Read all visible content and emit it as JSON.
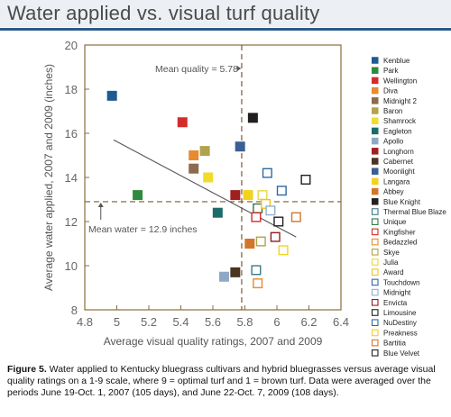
{
  "header": {
    "title": "Water applied vs. visual turf quality"
  },
  "caption": {
    "label": "Figure 5.",
    "text": " Water applied to Kentucky bluegrass cultivars and hybrid bluegrasses versus average visual quality ratings on a 1-9 scale, where 9 = optimal turf and 1 = brown turf. Data were averaged over the periods June 19-Oct. 1, 2007 (105 days), and June 22-Oct. 7, 2009 (108 days)."
  },
  "chart_data": {
    "type": "scatter",
    "xlabel": "Average visual quality ratings, 2007 and 2009",
    "ylabel": "Average water applied, 2007 and 2009 (inches)",
    "xlim": [
      4.8,
      6.4
    ],
    "ylim": [
      8,
      20
    ],
    "xticks": [
      "4.8",
      "5",
      "5.2",
      "5.4",
      "5.6",
      "5.8",
      "6",
      "6.2",
      "6.4"
    ],
    "yticks": [
      "8",
      "10",
      "12",
      "14",
      "16",
      "18",
      "20"
    ],
    "grid": false,
    "legend_position": "right",
    "mean_quality": {
      "value": 5.78,
      "label": "Mean quality = 5.78"
    },
    "mean_water": {
      "value": 12.9,
      "label": "Mean water = 12.9 inches"
    },
    "trendline": {
      "x": [
        4.98,
        6.12
      ],
      "y": [
        15.7,
        11.3
      ]
    },
    "colors": {
      "frame": "#8a6d3b",
      "mean_line": "#7a5a36",
      "trend": "#555555"
    },
    "series": [
      {
        "name": "Kenblue",
        "color": "#1f5a91",
        "filled": true,
        "x": 4.97,
        "y": 17.7
      },
      {
        "name": "Park",
        "color": "#2e8b3e",
        "filled": true,
        "x": 5.13,
        "y": 13.2
      },
      {
        "name": "Wellington",
        "color": "#d42b2b",
        "filled": true,
        "x": 5.41,
        "y": 16.5
      },
      {
        "name": "Diva",
        "color": "#e88a2e",
        "filled": true,
        "x": 5.48,
        "y": 15.0
      },
      {
        "name": "Midnight 2",
        "color": "#8c6a4f",
        "filled": true,
        "x": 5.48,
        "y": 14.4
      },
      {
        "name": "Baron",
        "color": "#b0a34a",
        "filled": true,
        "x": 5.55,
        "y": 15.2
      },
      {
        "name": "Shamrock",
        "color": "#f1dc2a",
        "filled": true,
        "x": 5.57,
        "y": 14.0
      },
      {
        "name": "Eagleton",
        "color": "#1d6b6b",
        "filled": true,
        "x": 5.63,
        "y": 12.4
      },
      {
        "name": "Apollo",
        "color": "#8fa8c6",
        "filled": true,
        "x": 5.67,
        "y": 9.5
      },
      {
        "name": "Longhorn",
        "color": "#a01f1f",
        "filled": true,
        "x": 5.74,
        "y": 13.2
      },
      {
        "name": "Cabernet",
        "color": "#4a3520",
        "filled": true,
        "x": 5.74,
        "y": 9.7
      },
      {
        "name": "Moonlight",
        "color": "#3a5f95",
        "filled": true,
        "x": 5.77,
        "y": 15.4
      },
      {
        "name": "Langara",
        "color": "#f3d21e",
        "filled": true,
        "x": 5.82,
        "y": 13.2
      },
      {
        "name": "Abbey",
        "color": "#d2762a",
        "filled": true,
        "x": 5.83,
        "y": 11.0
      },
      {
        "name": "Blue Knight",
        "color": "#231f20",
        "filled": true,
        "x": 5.85,
        "y": 16.7
      },
      {
        "name": "Thermal Blue Blaze",
        "color": "#3a7a87",
        "filled": false,
        "x": 5.87,
        "y": 9.8
      },
      {
        "name": "Unique",
        "color": "#2e7a4a",
        "filled": false,
        "x": 5.88,
        "y": 12.6
      },
      {
        "name": "Kingfisher",
        "color": "#d42b2b",
        "filled": false,
        "x": 5.87,
        "y": 12.2
      },
      {
        "name": "Bedazzled",
        "color": "#e88a2e",
        "filled": false,
        "x": 5.88,
        "y": 9.2
      },
      {
        "name": "Skye",
        "color": "#b0a34a",
        "filled": false,
        "x": 5.9,
        "y": 11.1
      },
      {
        "name": "Julia",
        "color": "#e7d840",
        "filled": false,
        "x": 5.91,
        "y": 13.2
      },
      {
        "name": "Award",
        "color": "#f1c31e",
        "filled": false,
        "x": 5.93,
        "y": 12.8
      },
      {
        "name": "Touchdown",
        "color": "#2e6aa0",
        "filled": false,
        "x": 5.94,
        "y": 14.2
      },
      {
        "name": "Midnight",
        "color": "#8fb0cc",
        "filled": false,
        "x": 5.96,
        "y": 12.5
      },
      {
        "name": "Envicta",
        "color": "#8a2020",
        "filled": false,
        "x": 5.99,
        "y": 11.3
      },
      {
        "name": "Limousine",
        "color": "#231f20",
        "filled": false,
        "x": 6.01,
        "y": 12.0
      },
      {
        "name": "NuDestiny",
        "color": "#2e6aa0",
        "filled": false,
        "x": 6.03,
        "y": 13.4
      },
      {
        "name": "Preakness",
        "color": "#f3d21e",
        "filled": false,
        "x": 6.04,
        "y": 10.7
      },
      {
        "name": "Bartitia",
        "color": "#d2762a",
        "filled": false,
        "x": 6.12,
        "y": 12.2
      },
      {
        "name": "Blue Velvet",
        "color": "#231f20",
        "filled": false,
        "x": 6.18,
        "y": 13.9
      }
    ]
  }
}
